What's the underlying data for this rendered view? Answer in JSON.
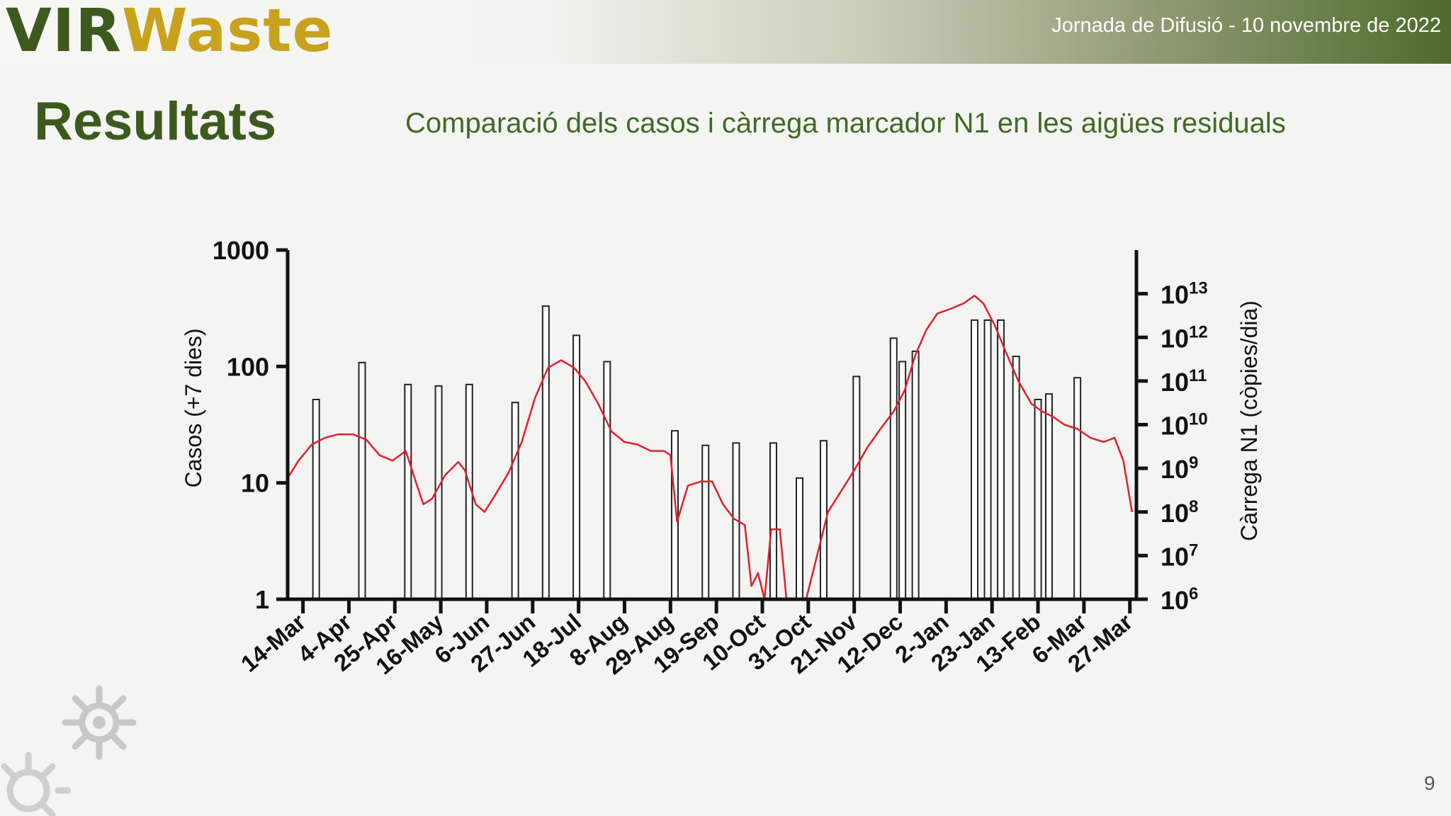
{
  "header": {
    "logo_part1": "VIR",
    "logo_part2": "Waste",
    "event": "Jornada de Difusió - 10 novembre de 2022"
  },
  "slide": {
    "title": "Resultats",
    "subtitle": "Comparació dels casos i càrrega marcador N1 en les aigües residuals",
    "page_number": "9"
  },
  "colors": {
    "brand_green": "#3d5a1e",
    "brand_gold": "#c9a21d",
    "line": "#e0202e",
    "bar": "#ffffff",
    "axis": "#111111"
  },
  "chart_data": {
    "type": "bar+line",
    "title": "",
    "xlabel": "",
    "ylabel_left": "Casos (+7 dies)",
    "ylabel_right": "Càrrega N1 (còpies/dia)",
    "y_left": {
      "scale": "log",
      "range": [
        1,
        1000
      ],
      "ticks": [
        "1",
        "10",
        "100",
        "1000"
      ]
    },
    "y_right": {
      "scale": "log",
      "range": [
        1000000,
        100000000000000
      ],
      "tick_exponents": [
        6,
        7,
        8,
        9,
        10,
        11,
        12,
        13
      ]
    },
    "x_range": [
      "2020-03-07",
      "2021-03-30"
    ],
    "x_ticks": [
      "14-Mar",
      "4-Apr",
      "25-Apr",
      "16-May",
      "6-Jun",
      "27-Jun",
      "18-Jul",
      "8-Aug",
      "29-Aug",
      "19-Sep",
      "10-Oct",
      "31-Oct",
      "21-Nov",
      "12-Dec",
      "2-Jan",
      "23-Jan",
      "13-Feb",
      "6-Mar",
      "27-Mar"
    ],
    "x_tick_dates": [
      "2020-03-14",
      "2020-04-04",
      "2020-04-25",
      "2020-05-16",
      "2020-06-06",
      "2020-06-27",
      "2020-07-18",
      "2020-08-08",
      "2020-08-29",
      "2020-09-19",
      "2020-10-10",
      "2020-10-31",
      "2020-11-21",
      "2020-12-12",
      "2021-01-02",
      "2021-01-23",
      "2021-02-13",
      "2021-03-06",
      "2021-03-27"
    ],
    "bars": {
      "name": "",
      "series_axis": "left",
      "dates": [
        "2020-03-20",
        "2020-04-10",
        "2020-05-01",
        "2020-05-15",
        "2020-05-29",
        "2020-06-19",
        "2020-07-03",
        "2020-07-17",
        "2020-07-31",
        "2020-08-31",
        "2020-09-14",
        "2020-09-28",
        "2020-10-15",
        "2020-10-27",
        "2020-11-07",
        "2020-11-22",
        "2020-12-09",
        "2020-12-13",
        "2020-12-19",
        "2021-01-15",
        "2021-01-21",
        "2021-01-27",
        "2021-02-03",
        "2021-02-13",
        "2021-02-18",
        "2021-03-03"
      ],
      "values": [
        52,
        108,
        70,
        68,
        70,
        49,
        330,
        185,
        110,
        28,
        21,
        22,
        22,
        11,
        23,
        82,
        175,
        110,
        135,
        250,
        250,
        250,
        122,
        52,
        58,
        80
      ]
    },
    "line": {
      "name": "",
      "series_axis": "right",
      "dates": [
        "2020-03-07",
        "2020-03-12",
        "2020-03-18",
        "2020-03-24",
        "2020-03-30",
        "2020-04-06",
        "2020-04-12",
        "2020-04-18",
        "2020-04-24",
        "2020-04-30",
        "2020-05-04",
        "2020-05-08",
        "2020-05-12",
        "2020-05-18",
        "2020-05-24",
        "2020-05-27",
        "2020-06-01",
        "2020-06-05",
        "2020-06-10",
        "2020-06-16",
        "2020-06-22",
        "2020-06-28",
        "2020-07-04",
        "2020-07-10",
        "2020-07-16",
        "2020-07-21",
        "2020-07-27",
        "2020-08-02",
        "2020-08-08",
        "2020-08-14",
        "2020-08-20",
        "2020-08-26",
        "2020-08-29",
        "2020-09-01",
        "2020-09-06",
        "2020-09-12",
        "2020-09-17",
        "2020-09-22",
        "2020-09-27",
        "2020-10-02",
        "2020-10-05",
        "2020-10-08",
        "2020-10-11",
        "2020-10-14",
        "2020-10-18",
        "2020-10-21",
        "2020-10-24",
        "2020-10-30",
        "2020-11-04",
        "2020-11-09",
        "2020-11-15",
        "2020-11-21",
        "2020-11-27",
        "2020-12-03",
        "2020-12-09",
        "2020-12-14",
        "2020-12-19",
        "2020-12-24",
        "2020-12-29",
        "2021-01-04",
        "2021-01-10",
        "2021-01-15",
        "2021-01-19",
        "2021-01-24",
        "2021-01-29",
        "2021-02-04",
        "2021-02-10",
        "2021-02-15",
        "2021-02-20",
        "2021-02-25",
        "2021-03-03",
        "2021-03-09",
        "2021-03-15",
        "2021-03-20",
        "2021-03-24",
        "2021-03-28"
      ],
      "values": [
        600000000,
        1500000000,
        3500000000,
        5000000000,
        6000000000,
        6000000000,
        4500000000,
        2000000000,
        1500000000,
        2500000000,
        600000000,
        150000000,
        200000000,
        700000000,
        1400000000,
        900000000,
        150000000,
        100000000,
        250000000,
        800000000,
        4000000000,
        40000000000,
        200000000000,
        300000000000,
        200000000000,
        100000000000,
        30000000000,
        7000000000,
        4000000000,
        3500000000,
        2500000000,
        2500000000,
        2000000000,
        60000000,
        400000000,
        500000000,
        500000000,
        150000000,
        70000000,
        50000000,
        2000000,
        4000000,
        1000000,
        40000000,
        40000000,
        1000000,
        1000000,
        1000000,
        10000000,
        100000000,
        300000000,
        900000000,
        3000000000,
        8000000000,
        20000000000,
        60000000000,
        400000000000,
        1500000000000,
        3500000000000,
        4500000000000,
        6000000000000,
        9000000000000,
        6000000000000,
        2000000000000,
        500000000000,
        100000000000,
        30000000000,
        20000000000,
        15000000000,
        10000000000,
        8000000000,
        5000000000,
        4000000000,
        5000000000,
        1500000000,
        100000000
      ]
    }
  }
}
